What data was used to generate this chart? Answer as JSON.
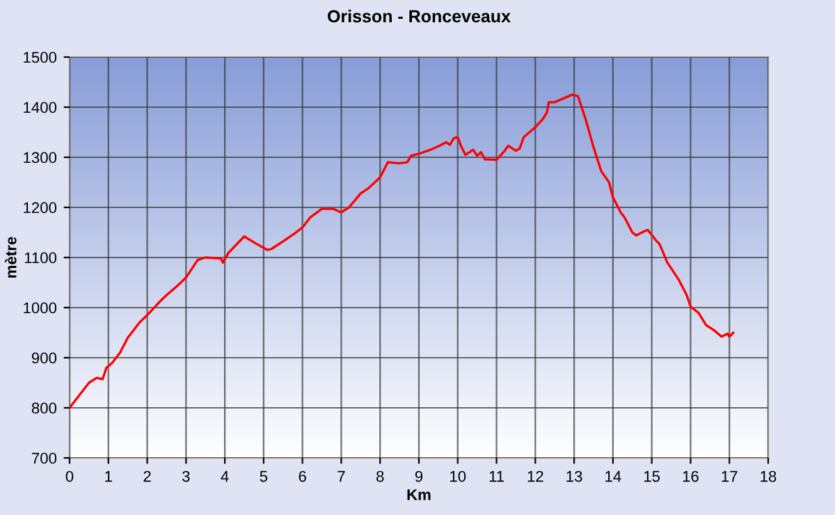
{
  "chart_data": {
    "type": "line",
    "title": "Orisson - Ronceveaux",
    "xlabel": "Km",
    "ylabel": "mètre",
    "series": [
      {
        "color": "#ff0000",
        "x": [
          0,
          0.25,
          0.5,
          0.7,
          0.85,
          0.95,
          1.1,
          1.3,
          1.5,
          1.8,
          2.0,
          2.3,
          2.5,
          2.8,
          3.0,
          3.3,
          3.5,
          3.9,
          3.95,
          4.1,
          4.5,
          4.8,
          5.1,
          5.2,
          5.5,
          5.8,
          6.0,
          6.2,
          6.5,
          6.8,
          7.0,
          7.2,
          7.5,
          7.7,
          8.0,
          8.2,
          8.5,
          8.7,
          8.8,
          9.0,
          9.3,
          9.5,
          9.7,
          9.8,
          9.9,
          10.0,
          10.1,
          10.2,
          10.3,
          10.4,
          10.5,
          10.6,
          10.7,
          11.0,
          11.2,
          11.3,
          11.5,
          11.6,
          11.7,
          12.0,
          12.2,
          12.3,
          12.35,
          12.5,
          12.8,
          12.95,
          13.1,
          13.3,
          13.5,
          13.7,
          13.9,
          14.0,
          14.2,
          14.3,
          14.5,
          14.6,
          14.8,
          14.9,
          15.1,
          15.2,
          15.4,
          15.7,
          15.9,
          16.0,
          16.2,
          16.4,
          16.6,
          16.8,
          16.95,
          17.0,
          17.1
        ],
        "values": [
          800,
          825,
          850,
          860,
          857,
          880,
          890,
          910,
          940,
          970,
          985,
          1010,
          1025,
          1045,
          1060,
          1095,
          1100,
          1098,
          1090,
          1110,
          1142,
          1128,
          1115,
          1117,
          1132,
          1148,
          1160,
          1180,
          1197,
          1197,
          1190,
          1200,
          1228,
          1238,
          1260,
          1290,
          1288,
          1290,
          1303,
          1307,
          1315,
          1322,
          1330,
          1325,
          1338,
          1340,
          1320,
          1305,
          1310,
          1315,
          1303,
          1310,
          1296,
          1295,
          1312,
          1323,
          1313,
          1318,
          1340,
          1360,
          1377,
          1390,
          1410,
          1410,
          1420,
          1425,
          1422,
          1375,
          1320,
          1272,
          1250,
          1220,
          1190,
          1180,
          1150,
          1144,
          1152,
          1155,
          1135,
          1127,
          1090,
          1055,
          1025,
          1002,
          990,
          965,
          955,
          942,
          948,
          942,
          950
        ]
      }
    ],
    "xlim": [
      0,
      18
    ],
    "xticks": [
      0,
      1,
      2,
      3,
      4,
      5,
      6,
      7,
      8,
      9,
      10,
      11,
      12,
      13,
      14,
      15,
      16,
      17,
      18
    ],
    "ylim": [
      700,
      1500
    ],
    "yticks": [
      700,
      800,
      900,
      1000,
      1100,
      1200,
      1300,
      1400,
      1500
    ],
    "grid": true,
    "marker": "none",
    "line_style": "solid"
  }
}
